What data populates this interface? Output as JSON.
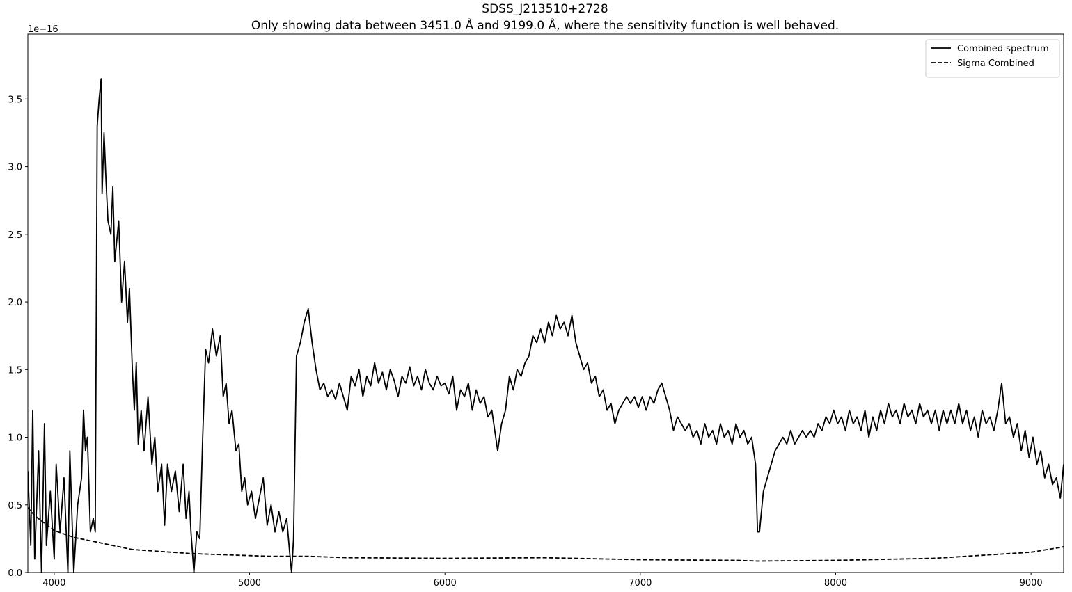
{
  "chart_data": {
    "type": "line",
    "title": "SDSS_J213510+2728",
    "subtitle": "Only showing data between 3451.0 Å and 9199.0 Å, where the sensitivity function is well behaved.",
    "y_offset_label": "1e−16",
    "xlim": [
      3865,
      9167
    ],
    "ylim": [
      0,
      3.98
    ],
    "xticks": [
      4000,
      5000,
      6000,
      7000,
      8000,
      9000
    ],
    "yticks": [
      {
        "value": 0,
        "label": "0.0"
      },
      0.5,
      {
        "value": 1,
        "label": "1.0"
      },
      1.5,
      {
        "value": 2,
        "label": "2.0"
      },
      2.5,
      {
        "value": 3,
        "label": "3.0"
      },
      3.5
    ],
    "grid": false,
    "legend": "upper right",
    "series": [
      {
        "name": "Combined spectrum",
        "color": "#000000",
        "style": "solid",
        "x": [
          3865,
          3880,
          3890,
          3900,
          3920,
          3935,
          3950,
          3960,
          3980,
          4000,
          4010,
          4030,
          4050,
          4070,
          4080,
          4100,
          4120,
          4140,
          4150,
          4160,
          4170,
          4185,
          4200,
          4210,
          4220,
          4230,
          4240,
          4245,
          4255,
          4265,
          4275,
          4290,
          4300,
          4310,
          4330,
          4345,
          4360,
          4375,
          4385,
          4400,
          4410,
          4420,
          4430,
          4445,
          4460,
          4480,
          4500,
          4515,
          4530,
          4550,
          4565,
          4580,
          4600,
          4620,
          4640,
          4660,
          4675,
          4690,
          4700,
          4715,
          4730,
          4745,
          4760,
          4775,
          4790,
          4810,
          4830,
          4850,
          4865,
          4880,
          4895,
          4910,
          4930,
          4945,
          4960,
          4975,
          4990,
          5010,
          5030,
          5050,
          5070,
          5090,
          5110,
          5130,
          5150,
          5170,
          5190,
          5205,
          5215,
          5225,
          5240,
          5260,
          5280,
          5300,
          5320,
          5340,
          5360,
          5380,
          5400,
          5420,
          5440,
          5460,
          5480,
          5500,
          5520,
          5540,
          5560,
          5580,
          5600,
          5620,
          5640,
          5660,
          5680,
          5700,
          5720,
          5740,
          5760,
          5780,
          5800,
          5820,
          5840,
          5860,
          5880,
          5900,
          5920,
          5940,
          5960,
          5980,
          6000,
          6020,
          6040,
          6060,
          6080,
          6100,
          6120,
          6140,
          6160,
          6180,
          6200,
          6220,
          6240,
          6260,
          6270,
          6290,
          6310,
          6330,
          6350,
          6370,
          6390,
          6410,
          6430,
          6450,
          6470,
          6490,
          6510,
          6530,
          6550,
          6570,
          6590,
          6610,
          6630,
          6650,
          6670,
          6690,
          6710,
          6730,
          6750,
          6770,
          6790,
          6810,
          6830,
          6850,
          6870,
          6890,
          6910,
          6930,
          6950,
          6970,
          6990,
          7010,
          7030,
          7050,
          7070,
          7090,
          7110,
          7130,
          7150,
          7170,
          7190,
          7210,
          7230,
          7250,
          7270,
          7290,
          7310,
          7330,
          7350,
          7370,
          7390,
          7410,
          7430,
          7450,
          7470,
          7490,
          7510,
          7530,
          7550,
          7570,
          7590,
          7600,
          7610,
          7630,
          7650,
          7670,
          7690,
          7710,
          7730,
          7750,
          7770,
          7790,
          7810,
          7830,
          7850,
          7870,
          7890,
          7910,
          7930,
          7950,
          7970,
          7990,
          8010,
          8030,
          8050,
          8070,
          8090,
          8110,
          8130,
          8150,
          8170,
          8190,
          8210,
          8230,
          8250,
          8270,
          8290,
          8310,
          8330,
          8350,
          8370,
          8390,
          8410,
          8430,
          8450,
          8470,
          8490,
          8510,
          8530,
          8550,
          8570,
          8590,
          8610,
          8630,
          8650,
          8670,
          8690,
          8710,
          8730,
          8750,
          8770,
          8790,
          8810,
          8830,
          8850,
          8870,
          8890,
          8910,
          8930,
          8950,
          8970,
          8990,
          9010,
          9030,
          9050,
          9070,
          9090,
          9110,
          9130,
          9150,
          9167
        ],
        "values": [
          0.75,
          0.2,
          1.2,
          0.1,
          0.9,
          0,
          1.1,
          0.2,
          0.6,
          0.1,
          0.8,
          0.3,
          0.7,
          0,
          0.9,
          0,
          0.5,
          0.7,
          1.2,
          0.9,
          1,
          0.3,
          0.4,
          0.3,
          3.3,
          3.5,
          3.65,
          2.8,
          3.25,
          2.9,
          2.6,
          2.5,
          2.85,
          2.3,
          2.6,
          2,
          2.3,
          1.85,
          2.1,
          1.5,
          1.2,
          1.55,
          0.95,
          1.2,
          0.9,
          1.3,
          0.8,
          1,
          0.6,
          0.8,
          0.35,
          0.8,
          0.6,
          0.75,
          0.45,
          0.8,
          0.4,
          0.6,
          0.3,
          0,
          0.3,
          0.25,
          1,
          1.65,
          1.55,
          1.8,
          1.6,
          1.75,
          1.3,
          1.4,
          1.1,
          1.2,
          0.9,
          0.95,
          0.6,
          0.7,
          0.5,
          0.6,
          0.4,
          0.55,
          0.7,
          0.35,
          0.5,
          0.3,
          0.45,
          0.3,
          0.4,
          0.15,
          0,
          0.25,
          1.6,
          1.7,
          1.85,
          1.95,
          1.7,
          1.5,
          1.35,
          1.4,
          1.3,
          1.35,
          1.28,
          1.4,
          1.3,
          1.2,
          1.45,
          1.38,
          1.5,
          1.3,
          1.45,
          1.38,
          1.55,
          1.4,
          1.48,
          1.35,
          1.5,
          1.42,
          1.3,
          1.45,
          1.4,
          1.52,
          1.38,
          1.45,
          1.35,
          1.5,
          1.4,
          1.35,
          1.45,
          1.38,
          1.4,
          1.32,
          1.45,
          1.2,
          1.35,
          1.3,
          1.4,
          1.2,
          1.35,
          1.25,
          1.3,
          1.15,
          1.2,
          1,
          0.9,
          1.1,
          1.2,
          1.45,
          1.35,
          1.5,
          1.45,
          1.55,
          1.6,
          1.75,
          1.7,
          1.8,
          1.7,
          1.85,
          1.75,
          1.9,
          1.8,
          1.85,
          1.75,
          1.9,
          1.7,
          1.6,
          1.5,
          1.55,
          1.4,
          1.45,
          1.3,
          1.35,
          1.2,
          1.25,
          1.1,
          1.2,
          1.25,
          1.3,
          1.25,
          1.3,
          1.22,
          1.3,
          1.2,
          1.3,
          1.25,
          1.35,
          1.4,
          1.3,
          1.2,
          1.05,
          1.15,
          1.1,
          1.05,
          1.1,
          1,
          1.05,
          0.95,
          1.1,
          1,
          1.05,
          0.95,
          1.1,
          1,
          1.05,
          0.95,
          1.1,
          1,
          1.05,
          0.95,
          1,
          0.8,
          0.3,
          0.3,
          0.6,
          0.7,
          0.8,
          0.9,
          0.95,
          1,
          0.95,
          1.05,
          0.95,
          1,
          1.05,
          1,
          1.05,
          1,
          1.1,
          1.05,
          1.15,
          1.1,
          1.2,
          1.1,
          1.15,
          1.05,
          1.2,
          1.1,
          1.15,
          1.05,
          1.2,
          1,
          1.15,
          1.05,
          1.2,
          1.1,
          1.25,
          1.15,
          1.2,
          1.1,
          1.25,
          1.15,
          1.2,
          1.1,
          1.25,
          1.15,
          1.2,
          1.1,
          1.2,
          1.05,
          1.2,
          1.1,
          1.2,
          1.1,
          1.25,
          1.1,
          1.2,
          1.05,
          1.15,
          1,
          1.2,
          1.1,
          1.15,
          1.05,
          1.2,
          1.4,
          1.1,
          1.15,
          1,
          1.1,
          0.9,
          1.05,
          0.85,
          1,
          0.8,
          0.9,
          0.7,
          0.8,
          0.65,
          0.7,
          0.55,
          0.8
        ]
      },
      {
        "name": "Sigma Combined",
        "color": "#000000",
        "style": "dashed",
        "x": [
          3865,
          3900,
          4000,
          4100,
          4200,
          4300,
          4400,
          4500,
          4700,
          4900,
          5100,
          5300,
          5500,
          6000,
          6500,
          7000,
          7500,
          7600,
          8000,
          8500,
          9000,
          9167
        ],
        "values": [
          0.48,
          0.42,
          0.31,
          0.26,
          0.23,
          0.2,
          0.17,
          0.16,
          0.14,
          0.13,
          0.12,
          0.12,
          0.11,
          0.105,
          0.11,
          0.095,
          0.09,
          0.085,
          0.09,
          0.105,
          0.15,
          0.19
        ]
      }
    ]
  }
}
